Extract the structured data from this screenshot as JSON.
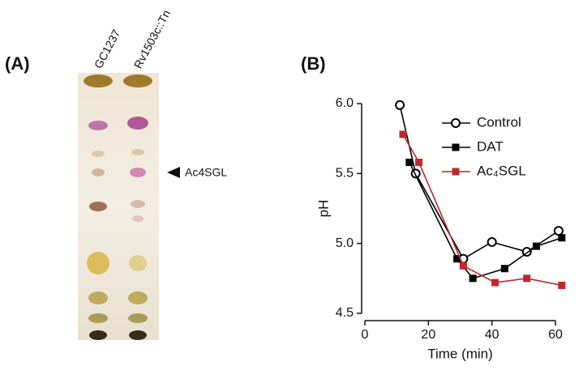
{
  "panel_a": {
    "label": "(A)",
    "lanes": [
      "GC1237",
      "Rv1503c::Tn"
    ],
    "annotation": "Ac4SGL"
  },
  "chart_data": {
    "type": "line",
    "panel_label": "(B)",
    "x_label": "Time (min)",
    "y_label": "pH",
    "xlim": [
      0,
      60
    ],
    "xticks": [
      0,
      20,
      40,
      60
    ],
    "ylim": [
      4.5,
      6.0
    ],
    "yticks": [
      4.5,
      {
        "value": 5,
        "label": "5.0"
      },
      5.5,
      {
        "value": 6,
        "label": "6.0"
      }
    ],
    "series": [
      {
        "name": "Control",
        "color": "#000000",
        "marker": "open-circle",
        "x": [
          11,
          16,
          31,
          40,
          51,
          61
        ],
        "values": [
          5.99,
          5.5,
          4.89,
          5.01,
          4.94,
          5.09
        ]
      },
      {
        "name": "DAT",
        "color": "#000000",
        "marker": "square",
        "x": [
          14,
          29,
          34,
          44,
          54,
          62
        ],
        "values": [
          5.58,
          4.89,
          4.75,
          4.82,
          4.98,
          5.04
        ]
      },
      {
        "name": "Ac₄SGL",
        "color": "#c0272d",
        "marker": "square",
        "x": [
          12,
          17,
          31,
          41,
          51,
          62
        ],
        "values": [
          5.78,
          5.58,
          4.84,
          4.72,
          4.75,
          4.7
        ]
      }
    ]
  }
}
